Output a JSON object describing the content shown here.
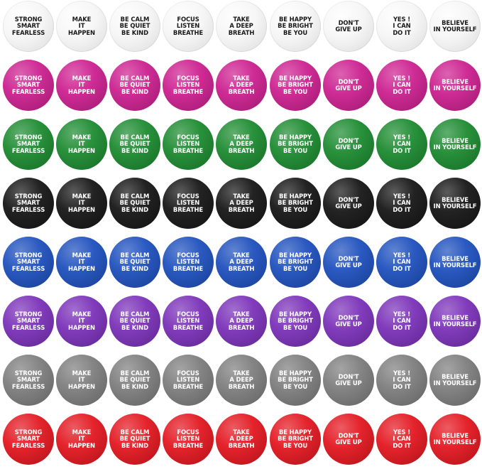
{
  "rows": [
    {
      "color": "white",
      "hex": "#f4f4f4"
    },
    {
      "color": "pink",
      "hex": "#cc1f8f"
    },
    {
      "color": "green",
      "hex": "#1b8a2f"
    },
    {
      "color": "black",
      "hex": "#151515"
    },
    {
      "color": "blue",
      "hex": "#1d4fbd"
    },
    {
      "color": "purple",
      "hex": "#7a30b8"
    },
    {
      "color": "gray",
      "hex": "#7d7d7d"
    },
    {
      "color": "red",
      "hex": "#e3161f"
    }
  ],
  "messages": [
    [
      "STRONG",
      "SMART",
      "FEARLESS"
    ],
    [
      "MAKE",
      "IT",
      "HAPPEN"
    ],
    [
      "BE CALM",
      "BE QUIET",
      "BE KIND"
    ],
    [
      "FOCUS",
      "LISTEN",
      "BREATHE"
    ],
    [
      "TAKE",
      "A DEEP",
      "BREATH"
    ],
    [
      "BE HAPPY",
      "BE BRIGHT",
      "BE YOU"
    ],
    [
      "DON'T",
      "GIVE UP"
    ],
    [
      "YES !",
      "I CAN",
      "DO IT"
    ],
    [
      "BELIEVE",
      "IN YOURSELF"
    ]
  ]
}
